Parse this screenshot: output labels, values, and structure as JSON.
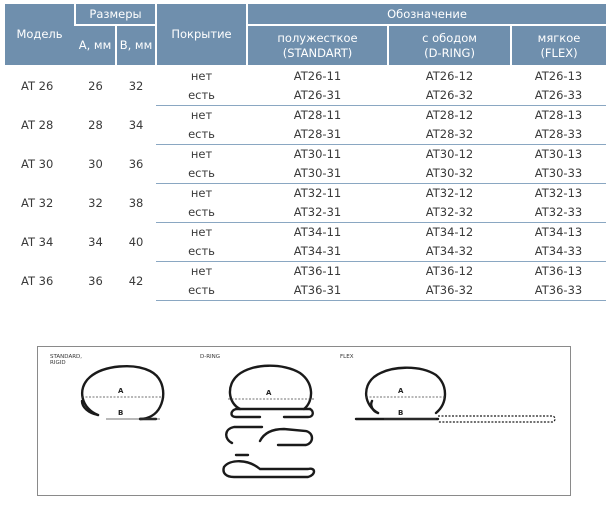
{
  "table": {
    "headers": {
      "model": "Модель",
      "sizes": "Размеры",
      "size_a": "А, мм",
      "size_b": "В, мм",
      "coating": "Покрытие",
      "designation": "Обозначение",
      "semi_rigid_line1": "полужесткое",
      "semi_rigid_line2": "(STANDART)",
      "d_ring_line1": "с ободом",
      "d_ring_line2": "(D-RING)",
      "soft_line1": "мягкое",
      "soft_line2": "(FLEX)"
    },
    "rows": [
      {
        "model": "AT 26",
        "a": "26",
        "b": "32",
        "variants": [
          {
            "coating": "нет",
            "standart": "AT26-11",
            "dring": "AT26-12",
            "flex": "AT26-13"
          },
          {
            "coating": "есть",
            "standart": "AT26-31",
            "dring": "AT26-32",
            "flex": "AT26-33"
          }
        ]
      },
      {
        "model": "AT 28",
        "a": "28",
        "b": "34",
        "variants": [
          {
            "coating": "нет",
            "standart": "AT28-11",
            "dring": "AT28-12",
            "flex": "AT28-13"
          },
          {
            "coating": "есть",
            "standart": "AT28-31",
            "dring": "AT28-32",
            "flex": "AT28-33"
          }
        ]
      },
      {
        "model": "AT 30",
        "a": "30",
        "b": "36",
        "variants": [
          {
            "coating": "нет",
            "standart": "AT30-11",
            "dring": "AT30-12",
            "flex": "AT30-13"
          },
          {
            "coating": "есть",
            "standart": "AT30-31",
            "dring": "AT30-32",
            "flex": "AT30-33"
          }
        ]
      },
      {
        "model": "AT 32",
        "a": "32",
        "b": "38",
        "variants": [
          {
            "coating": "нет",
            "standart": "AT32-11",
            "dring": "AT32-12",
            "flex": "AT32-13"
          },
          {
            "coating": "есть",
            "standart": "AT32-31",
            "dring": "AT32-32",
            "flex": "AT32-33"
          }
        ]
      },
      {
        "model": "AT 34",
        "a": "34",
        "b": "40",
        "variants": [
          {
            "coating": "нет",
            "standart": "AT34-11",
            "dring": "AT34-12",
            "flex": "AT34-13"
          },
          {
            "coating": "есть",
            "standart": "AT34-31",
            "dring": "AT34-32",
            "flex": "AT34-33"
          }
        ]
      },
      {
        "model": "AT 36",
        "a": "36",
        "b": "42",
        "variants": [
          {
            "coating": "нет",
            "standart": "AT36-11",
            "dring": "AT36-12",
            "flex": "AT36-13"
          },
          {
            "coating": "есть",
            "standart": "AT36-31",
            "dring": "AT36-32",
            "flex": "AT36-33"
          }
        ]
      }
    ]
  },
  "figure": {
    "label_standard_line1": "STANDARD,",
    "label_standard_line2": "RIGID",
    "label_dring": "D-RING",
    "label_flex": "FLEX",
    "dim_a": "A",
    "dim_b": "B"
  },
  "colors": {
    "header_bg": "#6f8fad",
    "row_separator": "#8aa7c2"
  }
}
